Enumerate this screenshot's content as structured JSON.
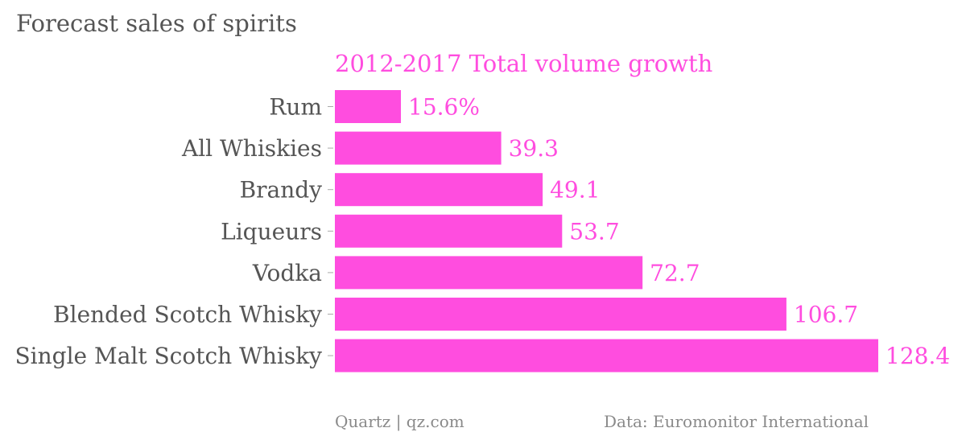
{
  "header": {
    "title": "Forecast sales of spirits",
    "subtitle": "2012-2017 Total volume growth"
  },
  "footer": {
    "credit": "Quartz | qz.com",
    "source": "Data: Euromonitor International"
  },
  "colors": {
    "bar": "#ff4ddf",
    "label_text": "#555555",
    "value_text": "#ff4ddf",
    "tick": "#aaaaaa"
  },
  "chart_data": {
    "type": "bar",
    "orientation": "horizontal",
    "title": "Forecast sales of spirits",
    "subtitle": "2012-2017 Total volume growth",
    "categories": [
      "Rum",
      "All Whiskies",
      "Brandy",
      "Liqueurs",
      "Vodka",
      "Blended Scotch Whisky",
      "Single Malt Scotch Whisky"
    ],
    "values": [
      15.6,
      39.3,
      49.1,
      53.7,
      72.7,
      106.7,
      128.4
    ],
    "value_labels": [
      "15.6%",
      "39.3",
      "49.1",
      "53.7",
      "72.7",
      "106.7",
      "128.4"
    ],
    "xlim": [
      0,
      128.4
    ],
    "grid": false
  }
}
